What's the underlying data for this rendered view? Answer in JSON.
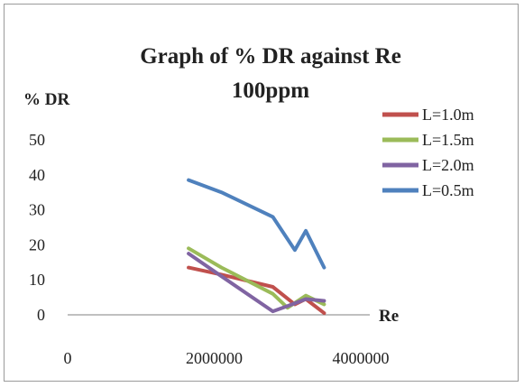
{
  "chart_data": {
    "type": "line",
    "title": "Graph of % DR against Re",
    "subtitle": "100ppm",
    "xlabel": "Re",
    "ylabel": "% DR",
    "xlim": [
      0,
      4000000
    ],
    "ylim": [
      0,
      50
    ],
    "x_ticks": [
      0,
      2000000,
      4000000
    ],
    "y_ticks": [
      0,
      10,
      20,
      30,
      40,
      50
    ],
    "grid": false,
    "legend_position": "right",
    "series": [
      {
        "name": "L=1.0m",
        "color": "#c0504d",
        "points": [
          [
            1650000,
            13.5
          ],
          [
            2100000,
            11.5
          ],
          [
            2800000,
            8
          ],
          [
            3100000,
            3
          ],
          [
            3250000,
            4.5
          ],
          [
            3500000,
            0.5
          ]
        ]
      },
      {
        "name": "L=1.5m",
        "color": "#9bbb59",
        "points": [
          [
            1650000,
            19
          ],
          [
            2100000,
            13.5
          ],
          [
            2800000,
            6
          ],
          [
            3000000,
            2
          ],
          [
            3250000,
            5.5
          ],
          [
            3500000,
            3
          ]
        ]
      },
      {
        "name": "L=2.0m",
        "color": "#8064a2",
        "points": [
          [
            1650000,
            17.5
          ],
          [
            2100000,
            11
          ],
          [
            2800000,
            1
          ],
          [
            3000000,
            2.5
          ],
          [
            3250000,
            4.5
          ],
          [
            3500000,
            4
          ]
        ]
      },
      {
        "name": "L=0.5m",
        "color": "#4f81bd",
        "points": [
          [
            1650000,
            38.5
          ],
          [
            2100000,
            35
          ],
          [
            2800000,
            28
          ],
          [
            3100000,
            18.5
          ],
          [
            3250000,
            24
          ],
          [
            3500000,
            13.5
          ]
        ]
      }
    ]
  }
}
